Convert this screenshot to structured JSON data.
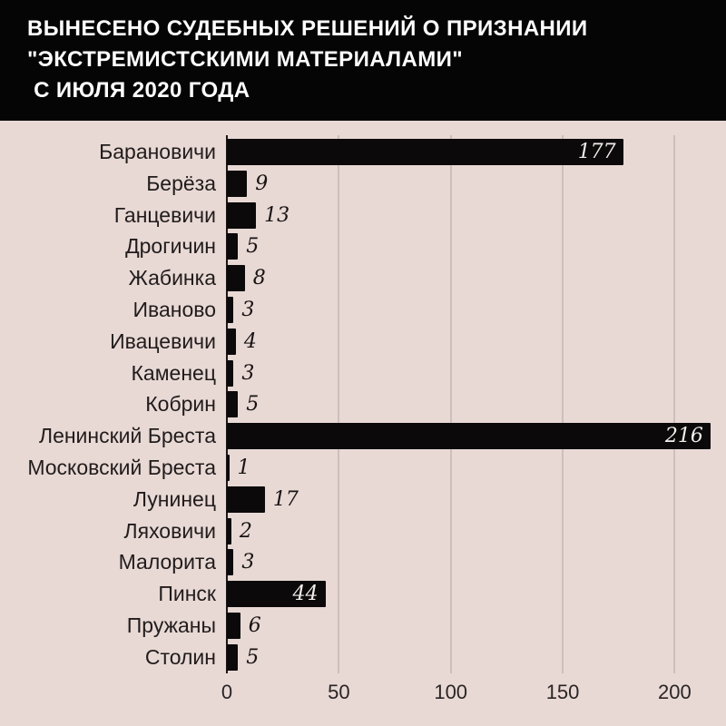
{
  "header": {
    "title_lines": [
      "ВЫНЕСЕНО СУДЕБНЫХ РЕШЕНИЙ О ПРИЗНАНИИ",
      "\"ЭКСТРЕМИСТСКИМИ МАТЕРИАЛАМИ\"",
      " С ИЮЛЯ 2020 ГОДА"
    ]
  },
  "chart_data": {
    "type": "bar",
    "orientation": "horizontal",
    "title": "ВЫНЕСЕНО СУДЕБНЫХ РЕШЕНИЙ О ПРИЗНАНИИ \"ЭКСТРЕМИСТСКИМИ МАТЕРИАЛАМИ\" С ИЮЛЯ 2020 ГОДА",
    "categories": [
      "Барановичи",
      "Берёза",
      "Ганцевичи",
      "Дрогичин",
      "Жабинка",
      "Иваново",
      "Ивацевичи",
      "Каменец",
      "Кобрин",
      "Ленинский Бреста",
      "Московский Бреста",
      "Лунинец",
      "Ляховичи",
      "Малорита",
      "Пинск",
      "Пружаны",
      "Столин"
    ],
    "values": [
      177,
      9,
      13,
      5,
      8,
      3,
      4,
      3,
      5,
      216,
      1,
      17,
      2,
      3,
      44,
      6,
      5
    ],
    "x_ticks": [
      0,
      50,
      100,
      150,
      200
    ],
    "xlim": [
      0,
      220
    ],
    "grid": true,
    "legend": false,
    "value_label_style": "italic; white inside bar for large values, dark outside for small values",
    "colors": {
      "bar": "#0b0909",
      "background": "#e8d9d5",
      "header_bg": "#060505",
      "header_text": "#ffffff",
      "gridline": "#cdbfbd",
      "zero_axis": "#1d1717",
      "category_label": "#211c1c",
      "value_inside": "#f3edec",
      "value_outside": "#181212",
      "tick_label": "#2a2424"
    }
  }
}
